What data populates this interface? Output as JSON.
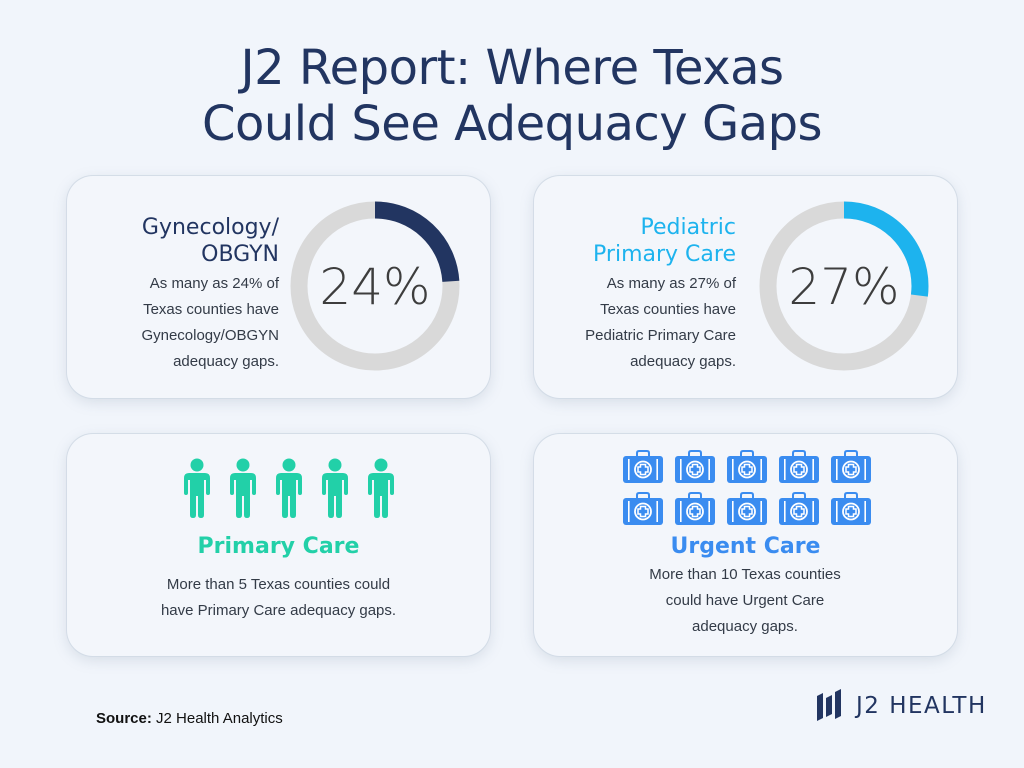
{
  "title": {
    "line1": "J2 Report: Where Texas",
    "line2": "Could See Adequacy Gaps"
  },
  "cards": {
    "gynecology": {
      "heading_line1": "Gynecology/",
      "heading_line2": "OBGYN",
      "desc_line1": "As many as 24% of",
      "desc_line2": "Texas counties have",
      "desc_line3": "Gynecology/OBGYN",
      "desc_line4": "adequacy gaps.",
      "percent_label": "24%",
      "percent_value": 24,
      "color": "#223561",
      "icon": "donut-chart"
    },
    "pediatric": {
      "heading_line1": "Pediatric",
      "heading_line2": "Primary Care",
      "desc_line1": "As many as 27% of",
      "desc_line2": "Texas counties have",
      "desc_line3": "Pediatric Primary Care",
      "desc_line4": "adequacy gaps.",
      "percent_label": "27%",
      "percent_value": 27,
      "color": "#1db3ee",
      "icon": "donut-chart"
    },
    "primary_care": {
      "heading": "Primary Care",
      "desc_line1": "More than 5 Texas counties could",
      "desc_line2": "have Primary Care adequacy gaps.",
      "icon_count": 5,
      "icon": "person-icon",
      "color": "#22d0a8"
    },
    "urgent_care": {
      "heading": "Urgent Care",
      "desc_line1": "More than 10 Texas counties",
      "desc_line2": "could have Urgent Care",
      "desc_line3": "adequacy gaps.",
      "icon_count": 10,
      "icon": "first-aid-kit-icon",
      "color": "#3a8cf0"
    }
  },
  "footer": {
    "source_label": "Source:",
    "source_text": " J2 Health Analytics",
    "logo_text": "J2 HEALTH"
  },
  "colors": {
    "background": "#f1f5fb",
    "navy": "#223561",
    "track_gray": "#d9d9d9"
  }
}
